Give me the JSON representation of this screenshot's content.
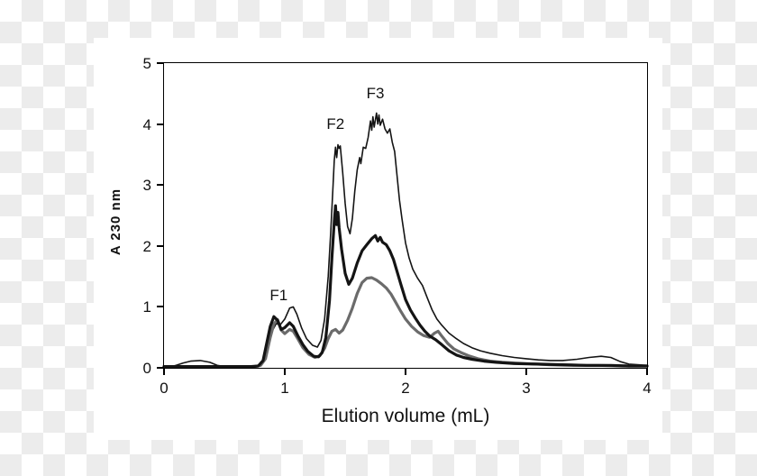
{
  "chart_data": {
    "type": "line",
    "title": "",
    "xlabel": "Elution volume (mL)",
    "ylabel": "A 230 nm",
    "xlim": [
      0,
      4
    ],
    "ylim": [
      0,
      5
    ],
    "x_ticks": [
      "0",
      "1",
      "2",
      "3",
      "4"
    ],
    "y_ticks": [
      "0",
      "1",
      "2",
      "3",
      "4",
      "5"
    ],
    "grid": false,
    "legend": null,
    "annotations": [
      {
        "label": "F1",
        "x": 0.95,
        "y": 1.18
      },
      {
        "label": "F2",
        "x": 1.42,
        "y": 4.0
      },
      {
        "label": "F3",
        "x": 1.75,
        "y": 4.5
      }
    ],
    "series": [
      {
        "name": "thin-black-trace",
        "color": "#141414",
        "width": 1.6,
        "points": [
          [
            0,
            0.02
          ],
          [
            0.06,
            0.02
          ],
          [
            0.1,
            0.04
          ],
          [
            0.16,
            0.08
          ],
          [
            0.22,
            0.11
          ],
          [
            0.3,
            0.12
          ],
          [
            0.38,
            0.09
          ],
          [
            0.44,
            0.04
          ],
          [
            0.5,
            0.02
          ],
          [
            0.62,
            0.02
          ],
          [
            0.72,
            0.02
          ],
          [
            0.78,
            0.04
          ],
          [
            0.82,
            0.12
          ],
          [
            0.86,
            0.38
          ],
          [
            0.9,
            0.62
          ],
          [
            0.93,
            0.73
          ],
          [
            0.96,
            0.7
          ],
          [
            1.0,
            0.8
          ],
          [
            1.04,
            0.98
          ],
          [
            1.07,
            1.0
          ],
          [
            1.1,
            0.88
          ],
          [
            1.14,
            0.65
          ],
          [
            1.18,
            0.48
          ],
          [
            1.23,
            0.37
          ],
          [
            1.27,
            0.34
          ],
          [
            1.3,
            0.45
          ],
          [
            1.33,
            0.8
          ],
          [
            1.36,
            1.5
          ],
          [
            1.38,
            2.2
          ],
          [
            1.4,
            3.0
          ],
          [
            1.41,
            3.4
          ],
          [
            1.42,
            3.62
          ],
          [
            1.43,
            3.45
          ],
          [
            1.44,
            3.66
          ],
          [
            1.45,
            3.6
          ],
          [
            1.46,
            3.64
          ],
          [
            1.48,
            3.2
          ],
          [
            1.5,
            2.7
          ],
          [
            1.52,
            2.32
          ],
          [
            1.54,
            2.2
          ],
          [
            1.56,
            2.45
          ],
          [
            1.58,
            2.9
          ],
          [
            1.6,
            3.25
          ],
          [
            1.62,
            3.45
          ],
          [
            1.63,
            3.35
          ],
          [
            1.65,
            3.62
          ],
          [
            1.67,
            3.6
          ],
          [
            1.69,
            3.78
          ],
          [
            1.71,
            4.05
          ],
          [
            1.72,
            3.9
          ],
          [
            1.73,
            4.12
          ],
          [
            1.74,
            3.95
          ],
          [
            1.76,
            4.18
          ],
          [
            1.77,
            4.0
          ],
          [
            1.78,
            4.15
          ],
          [
            1.79,
            3.98
          ],
          [
            1.81,
            4.08
          ],
          [
            1.83,
            3.92
          ],
          [
            1.85,
            3.85
          ],
          [
            1.87,
            3.92
          ],
          [
            1.89,
            3.7
          ],
          [
            1.91,
            3.55
          ],
          [
            1.93,
            3.15
          ],
          [
            1.95,
            2.75
          ],
          [
            1.97,
            2.45
          ],
          [
            2.0,
            2.05
          ],
          [
            2.03,
            1.8
          ],
          [
            2.06,
            1.62
          ],
          [
            2.1,
            1.47
          ],
          [
            2.14,
            1.35
          ],
          [
            2.18,
            1.15
          ],
          [
            2.22,
            0.95
          ],
          [
            2.26,
            0.8
          ],
          [
            2.3,
            0.7
          ],
          [
            2.36,
            0.57
          ],
          [
            2.42,
            0.48
          ],
          [
            2.48,
            0.4
          ],
          [
            2.55,
            0.33
          ],
          [
            2.62,
            0.28
          ],
          [
            2.7,
            0.24
          ],
          [
            2.8,
            0.2
          ],
          [
            2.9,
            0.17
          ],
          [
            3.0,
            0.15
          ],
          [
            3.1,
            0.13
          ],
          [
            3.2,
            0.12
          ],
          [
            3.3,
            0.12
          ],
          [
            3.42,
            0.14
          ],
          [
            3.52,
            0.17
          ],
          [
            3.62,
            0.19
          ],
          [
            3.7,
            0.17
          ],
          [
            3.78,
            0.1
          ],
          [
            3.85,
            0.06
          ],
          [
            3.92,
            0.05
          ],
          [
            4.0,
            0.04
          ]
        ]
      },
      {
        "name": "gray-trace",
        "color": "#6b6b6b",
        "width": 3.2,
        "points": [
          [
            0,
            0.02
          ],
          [
            0.3,
            0.02
          ],
          [
            0.6,
            0.02
          ],
          [
            0.75,
            0.02
          ],
          [
            0.8,
            0.04
          ],
          [
            0.84,
            0.15
          ],
          [
            0.88,
            0.5
          ],
          [
            0.91,
            0.72
          ],
          [
            0.94,
            0.79
          ],
          [
            0.97,
            0.62
          ],
          [
            1.0,
            0.56
          ],
          [
            1.04,
            0.63
          ],
          [
            1.07,
            0.6
          ],
          [
            1.11,
            0.47
          ],
          [
            1.15,
            0.33
          ],
          [
            1.2,
            0.22
          ],
          [
            1.25,
            0.17
          ],
          [
            1.29,
            0.2
          ],
          [
            1.33,
            0.32
          ],
          [
            1.36,
            0.48
          ],
          [
            1.39,
            0.6
          ],
          [
            1.42,
            0.63
          ],
          [
            1.45,
            0.57
          ],
          [
            1.48,
            0.62
          ],
          [
            1.52,
            0.78
          ],
          [
            1.56,
            0.98
          ],
          [
            1.6,
            1.22
          ],
          [
            1.64,
            1.4
          ],
          [
            1.68,
            1.47
          ],
          [
            1.72,
            1.48
          ],
          [
            1.76,
            1.44
          ],
          [
            1.8,
            1.38
          ],
          [
            1.84,
            1.31
          ],
          [
            1.88,
            1.21
          ],
          [
            1.92,
            1.07
          ],
          [
            1.96,
            0.93
          ],
          [
            2.0,
            0.8
          ],
          [
            2.05,
            0.68
          ],
          [
            2.1,
            0.59
          ],
          [
            2.15,
            0.53
          ],
          [
            2.2,
            0.5
          ],
          [
            2.24,
            0.57
          ],
          [
            2.27,
            0.6
          ],
          [
            2.3,
            0.52
          ],
          [
            2.35,
            0.4
          ],
          [
            2.4,
            0.31
          ],
          [
            2.46,
            0.25
          ],
          [
            2.52,
            0.2
          ],
          [
            2.6,
            0.15
          ],
          [
            2.7,
            0.11
          ],
          [
            2.8,
            0.09
          ],
          [
            3.0,
            0.07
          ],
          [
            3.2,
            0.05
          ],
          [
            3.4,
            0.04
          ],
          [
            3.6,
            0.04
          ],
          [
            3.8,
            0.03
          ],
          [
            4.0,
            0.03
          ]
        ]
      },
      {
        "name": "thick-black-trace",
        "color": "#141414",
        "width": 3.2,
        "points": [
          [
            0,
            0.02
          ],
          [
            0.3,
            0.02
          ],
          [
            0.6,
            0.02
          ],
          [
            0.72,
            0.02
          ],
          [
            0.78,
            0.03
          ],
          [
            0.82,
            0.12
          ],
          [
            0.85,
            0.4
          ],
          [
            0.88,
            0.68
          ],
          [
            0.91,
            0.84
          ],
          [
            0.94,
            0.78
          ],
          [
            0.97,
            0.63
          ],
          [
            1.0,
            0.66
          ],
          [
            1.04,
            0.74
          ],
          [
            1.07,
            0.68
          ],
          [
            1.11,
            0.52
          ],
          [
            1.15,
            0.38
          ],
          [
            1.19,
            0.27
          ],
          [
            1.24,
            0.19
          ],
          [
            1.28,
            0.18
          ],
          [
            1.31,
            0.25
          ],
          [
            1.34,
            0.5
          ],
          [
            1.37,
            1.1
          ],
          [
            1.39,
            1.8
          ],
          [
            1.41,
            2.4
          ],
          [
            1.42,
            2.66
          ],
          [
            1.43,
            2.35
          ],
          [
            1.44,
            2.55
          ],
          [
            1.45,
            2.3
          ],
          [
            1.47,
            1.95
          ],
          [
            1.5,
            1.55
          ],
          [
            1.53,
            1.37
          ],
          [
            1.56,
            1.47
          ],
          [
            1.6,
            1.72
          ],
          [
            1.64,
            1.92
          ],
          [
            1.68,
            2.02
          ],
          [
            1.72,
            2.12
          ],
          [
            1.75,
            2.17
          ],
          [
            1.77,
            2.08
          ],
          [
            1.79,
            2.14
          ],
          [
            1.81,
            2.06
          ],
          [
            1.84,
            2.02
          ],
          [
            1.87,
            1.92
          ],
          [
            1.9,
            1.78
          ],
          [
            1.93,
            1.58
          ],
          [
            1.96,
            1.38
          ],
          [
            2.0,
            1.12
          ],
          [
            2.04,
            0.95
          ],
          [
            2.08,
            0.82
          ],
          [
            2.12,
            0.7
          ],
          [
            2.16,
            0.6
          ],
          [
            2.2,
            0.52
          ],
          [
            2.25,
            0.46
          ],
          [
            2.3,
            0.38
          ],
          [
            2.36,
            0.28
          ],
          [
            2.42,
            0.21
          ],
          [
            2.48,
            0.17
          ],
          [
            2.55,
            0.14
          ],
          [
            2.65,
            0.11
          ],
          [
            2.75,
            0.09
          ],
          [
            2.9,
            0.07
          ],
          [
            3.1,
            0.06
          ],
          [
            3.3,
            0.05
          ],
          [
            3.5,
            0.04
          ],
          [
            3.7,
            0.04
          ],
          [
            3.85,
            0.03
          ],
          [
            4.0,
            0.03
          ]
        ]
      }
    ]
  }
}
